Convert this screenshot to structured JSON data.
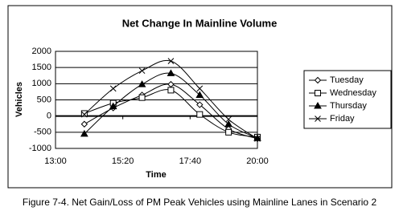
{
  "chart_data": {
    "type": "line",
    "title": "Net Change In Mainline Volume",
    "x_label": "Time",
    "y_label": "Vehicles",
    "caption": "Figure 7-4. Net Gain/Loss of PM Peak Vehicles using Mainline Lanes in Scenario 2",
    "x": [
      840,
      900,
      960,
      1020,
      1080,
      1140,
      1200
    ],
    "xlim": [
      780,
      1200
    ],
    "xticks": [
      {
        "value": 780,
        "label": "13:00"
      },
      {
        "value": 920,
        "label": "15:20"
      },
      {
        "value": 1060,
        "label": "17:40"
      },
      {
        "value": 1200,
        "label": "20:00"
      }
    ],
    "ylim": [
      -1000,
      2000
    ],
    "yticks": [
      -1000,
      -500,
      0,
      500,
      1000,
      1500,
      2000
    ],
    "grid": true,
    "legend": "right",
    "smooth": true,
    "series": [
      {
        "name": "Tuesday",
        "color": "#000000",
        "marker": "diamond",
        "values": [
          -250,
          250,
          650,
          980,
          350,
          -400,
          -700
        ]
      },
      {
        "name": "Wednesday",
        "color": "#000000",
        "marker": "square",
        "values": [
          80,
          400,
          570,
          800,
          50,
          -500,
          -650
        ]
      },
      {
        "name": "Thursday",
        "color": "#000000",
        "marker": "triangle",
        "values": [
          -550,
          300,
          980,
          1320,
          650,
          -250,
          -680
        ]
      },
      {
        "name": "Friday",
        "color": "#000000",
        "marker": "x",
        "values": [
          50,
          850,
          1400,
          1700,
          850,
          -100,
          -700
        ]
      }
    ]
  }
}
